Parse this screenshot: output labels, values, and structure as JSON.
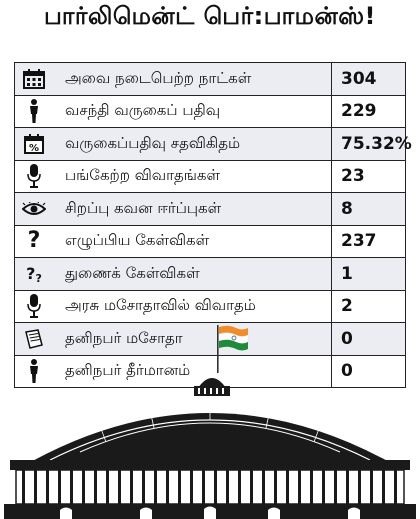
{
  "title": "பார்லிமென்ட் பெர்:பாமன்ஸ்!",
  "rows": [
    {
      "icon": "calendar-icon",
      "label": "அவை நடைபெற்ற நாட்கள்",
      "value": "304"
    },
    {
      "icon": "person-icon",
      "label": "வசந்தி வருகைப் பதிவு",
      "value": "229"
    },
    {
      "icon": "percent-calendar-icon",
      "label": "வருகைப்பதிவு சதவிகிதம்",
      "value": "75.32%"
    },
    {
      "icon": "microphone-icon",
      "label": "பங்கேற்ற விவாதங்கள்",
      "value": "23"
    },
    {
      "icon": "eye-icon",
      "label": "சிறப்பு கவன ஈர்ப்புகள்",
      "value": "8"
    },
    {
      "icon": "question-icon",
      "label": "எழுப்பிய கேள்விகள்",
      "value": "237"
    },
    {
      "icon": "sub-question-icon",
      "label": "துணைக் கேள்விகள்",
      "value": "1"
    },
    {
      "icon": "microphone-icon",
      "label": "அரசு மசோதாவில் விவாதம்",
      "value": "2"
    },
    {
      "icon": "document-icon",
      "label": "தனிநபர் மசோதா",
      "value": "0"
    },
    {
      "icon": "person-icon",
      "label": "தனிநபர் தீர்மானம்",
      "value": "0"
    }
  ],
  "colors": {
    "saffron": "#f28c28",
    "green": "#1e8a3a",
    "ink": "#1a1a1a",
    "row_shade": "#ececf3"
  }
}
